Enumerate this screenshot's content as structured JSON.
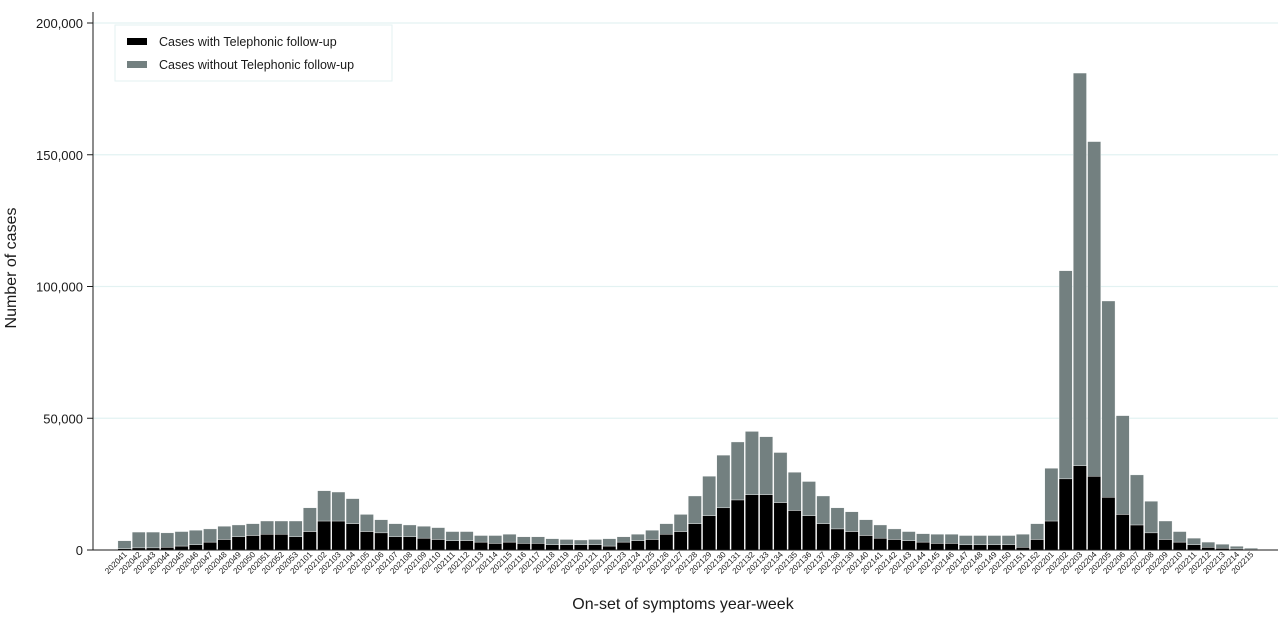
{
  "chart_data": {
    "type": "bar",
    "stacked": true,
    "title": "",
    "xlabel": "On-set of symptoms year-week",
    "ylabel": "Number of cases",
    "ylim": [
      0,
      200000
    ],
    "yticks": [
      0,
      50000,
      100000,
      150000,
      200000
    ],
    "ytick_labels": [
      "0",
      "50,000",
      "100,000",
      "150,000",
      "200,000"
    ],
    "grid": true,
    "legend_position": "top-left",
    "categories": [
      "202041",
      "202042",
      "202043",
      "202044",
      "202045",
      "202046",
      "202047",
      "202048",
      "202049",
      "202050",
      "202051",
      "202052",
      "202053",
      "202101",
      "202102",
      "202103",
      "202104",
      "202105",
      "202106",
      "202107",
      "202108",
      "202109",
      "202110",
      "202111",
      "202112",
      "202113",
      "202114",
      "202115",
      "202116",
      "202117",
      "202118",
      "202119",
      "202120",
      "202121",
      "202122",
      "202123",
      "202124",
      "202125",
      "202126",
      "202127",
      "202128",
      "202129",
      "202130",
      "202131",
      "202132",
      "202133",
      "202134",
      "202135",
      "202136",
      "202137",
      "202138",
      "202139",
      "202140",
      "202141",
      "202142",
      "202143",
      "202144",
      "202145",
      "202146",
      "202147",
      "202148",
      "202149",
      "202150",
      "202151",
      "202152",
      "202201",
      "202202",
      "202203",
      "202204",
      "202205",
      "202206",
      "202207",
      "202208",
      "202209",
      "202210",
      "202211",
      "202212",
      "202213",
      "202214",
      "202215"
    ],
    "series": [
      {
        "name": "Cases with Telephonic follow-up",
        "color": "#000000",
        "values": [
          500,
          800,
          800,
          1000,
          1500,
          2000,
          3000,
          4000,
          5000,
          5500,
          6000,
          6000,
          5000,
          7000,
          11000,
          11000,
          10000,
          7000,
          6500,
          5000,
          5000,
          4500,
          4000,
          3500,
          3500,
          3000,
          2500,
          3000,
          2500,
          2500,
          2000,
          2000,
          2000,
          2000,
          1500,
          3000,
          3500,
          4000,
          6000,
          7000,
          10000,
          13000,
          16000,
          19000,
          21000,
          21000,
          18000,
          15000,
          13000,
          10000,
          8000,
          7000,
          5500,
          4500,
          4000,
          3500,
          3000,
          2500,
          2500,
          2000,
          2000,
          2000,
          2000,
          1000,
          4000,
          11000,
          27000,
          32000,
          28000,
          20000,
          13500,
          9500,
          6500,
          4000,
          3000,
          2000,
          1000,
          700,
          400,
          200
        ]
      },
      {
        "name": "Cases without Telephonic follow-up",
        "color": "#738080",
        "values": [
          3000,
          6000,
          6000,
          5500,
          5500,
          5500,
          5000,
          5000,
          4500,
          4500,
          5000,
          5000,
          6000,
          9000,
          11500,
          11000,
          9500,
          6500,
          5000,
          5000,
          4500,
          4500,
          4500,
          3500,
          3500,
          2500,
          3000,
          3000,
          2500,
          2500,
          2300,
          2000,
          1800,
          2000,
          2800,
          2000,
          2500,
          3500,
          4000,
          6500,
          10500,
          15000,
          20000,
          22000,
          24000,
          22000,
          19000,
          14500,
          13000,
          10500,
          8000,
          7500,
          6000,
          5000,
          4000,
          3500,
          3200,
          3500,
          3500,
          3500,
          3500,
          3500,
          3500,
          5000,
          6000,
          20000,
          79000,
          149000,
          127000,
          74500,
          37500,
          19000,
          12000,
          7000,
          4000,
          2500,
          2000,
          1500,
          1000,
          500
        ]
      }
    ]
  }
}
